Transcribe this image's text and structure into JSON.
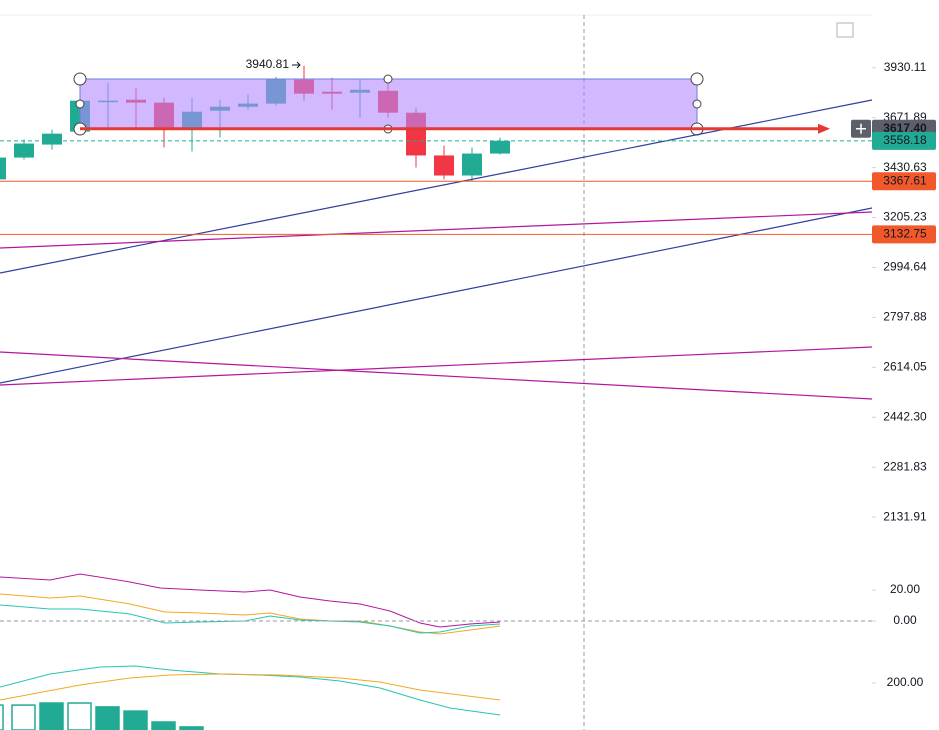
{
  "chart_data": [
    {
      "type": "candlestick",
      "log_scale": true,
      "ylim": [
        2011,
        4310
      ],
      "yticks": [
        3930.11,
        3671.89,
        3430.63,
        3205.23,
        2994.64,
        2797.88,
        2614.05,
        {
          "value": 2442.3,
          "label": "2442.30"
        },
        2281.83,
        2131.91
      ],
      "open": [
        3376,
        3478,
        3540,
        3603,
        3753,
        3763,
        3748,
        3623,
        3707,
        3727,
        3743,
        3867,
        3804,
        3799,
        3809,
        3697,
        3488,
        3394,
        3497
      ],
      "high": [
        3492,
        3564,
        3613,
        3773,
        3851,
        3825,
        3773,
        3773,
        3763,
        3789,
        3882,
        3940.81,
        3877,
        3867,
        3867,
        3722,
        3535,
        3526,
        3574
      ],
      "low": [
        3366,
        3469,
        3516,
        3588,
        3613,
        3613,
        3526,
        3507,
        3574,
        3712,
        3732,
        3758,
        3712,
        3672,
        3672,
        3431,
        3376,
        3366,
        3492
      ],
      "close": [
        3478,
        3545,
        3593,
        3758,
        3758,
        3748,
        3623,
        3702,
        3727,
        3743,
        3872,
        3794,
        3794,
        3814,
        3697,
        3488,
        3394,
        3497,
        3558.18
      ],
      "up_color": "#22ab94",
      "down_color": "#f23645",
      "price_lines": [
        {
          "value": 3617.4,
          "label": "3617.40",
          "color": "#e53935",
          "box": "#5d606b"
        },
        {
          "value": 3558.18,
          "color": "#22ab94",
          "box": "#22ab94"
        },
        {
          "value": 3367.61,
          "color": "#f1592a",
          "box": "#f1592a"
        },
        {
          "value": 3132.75,
          "color": "#f1592a",
          "box": "#f1592a"
        }
      ]
    },
    {
      "type": "oscillator",
      "ylim": [
        -12.3,
        39.4
      ],
      "yticks": [
        {
          "value": 20,
          "label": "20.00"
        },
        {
          "value": 0,
          "label": "0.00"
        }
      ]
    },
    {
      "type": "bar",
      "ylim": [
        19.2,
        346.2
      ],
      "yticks": [
        {
          "value": 200,
          "label": "200.00"
        }
      ],
      "values": [
        115,
        115,
        123,
        123,
        108,
        92,
        50,
        31
      ],
      "hollow": [
        true,
        true,
        false,
        true,
        false,
        false,
        false,
        false
      ],
      "color": "#22ab94"
    }
  ]
}
